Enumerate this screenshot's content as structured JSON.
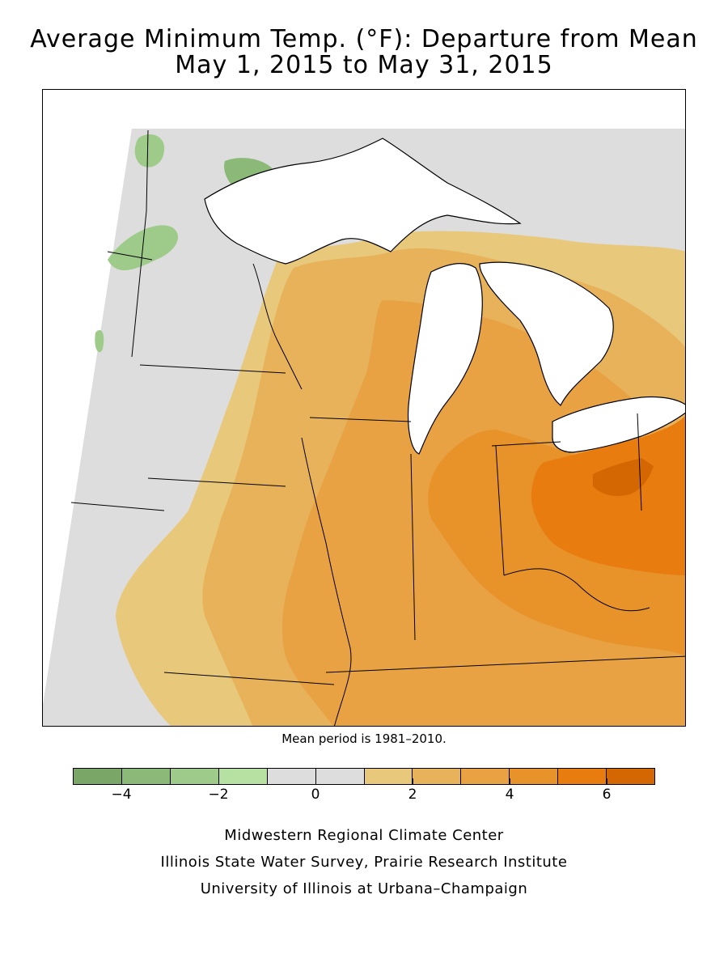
{
  "title": {
    "line1": "Average Minimum Temp. (°F): Departure from Mean",
    "line2": "May 1, 2015 to May 31, 2015"
  },
  "note": "Mean period is 1981–2010.",
  "legend": {
    "colors": [
      "#7aa767",
      "#8ab978",
      "#9fcb8a",
      "#b6e1a3",
      "#dddddd",
      "#dddddd",
      "#e8c97c",
      "#e8b25b",
      "#e8a243",
      "#e8922a",
      "#e87c0e",
      "#d46702"
    ],
    "tick_labels": [
      "−4",
      "−2",
      "0",
      "2",
      "4",
      "6"
    ],
    "range": [
      -5,
      7
    ],
    "ticks": [
      -4,
      -2,
      0,
      2,
      4,
      6
    ]
  },
  "credits": {
    "line1": "Midwestern Regional Climate Center",
    "line2": "Illinois State Water Survey, Prairie Research Institute",
    "line3": "University of Illinois at Urbana–Champaign"
  },
  "map_colors": {
    "neutral": "#dddddd",
    "light_green": "#9fcb8a",
    "green": "#8ab978",
    "c2": "#e8c97c",
    "c3": "#e8b25b",
    "c4": "#e8a243",
    "c5": "#e8922a",
    "c6": "#e87c0e",
    "c7": "#d46702",
    "water": "#ffffff",
    "border": "#000000"
  }
}
